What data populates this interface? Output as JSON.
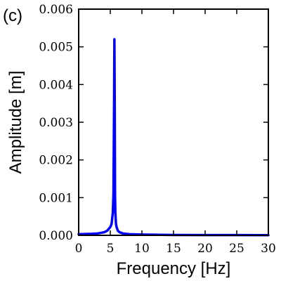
{
  "panel_label": "(c)",
  "chart_data": {
    "type": "line",
    "title": "",
    "xlabel": "Frequency [Hz]",
    "ylabel": "Amplitude [m]",
    "xlim": [
      0,
      30
    ],
    "ylim": [
      0,
      0.006
    ],
    "xticks": [
      0,
      5,
      10,
      15,
      20,
      25,
      30
    ],
    "xtick_labels": [
      "0",
      "5",
      "10",
      "15",
      "20",
      "25",
      "30"
    ],
    "yticks": [
      0,
      0.001,
      0.002,
      0.003,
      0.004,
      0.005,
      0.006
    ],
    "ytick_labels": [
      "0.000",
      "0.001",
      "0.002",
      "0.003",
      "0.004",
      "0.005",
      "0.006"
    ],
    "grid": false,
    "series": [
      {
        "color": "#0000ff",
        "x": [
          0,
          1,
          2,
          3,
          4,
          4.5,
          5,
          5.2,
          5.4,
          5.5,
          5.6,
          5.65,
          5.7,
          5.75,
          5.8,
          5.9,
          6.0,
          6.2,
          6.5,
          7,
          8,
          10,
          15,
          20,
          25,
          30
        ],
        "y": [
          3e-05,
          3.5e-05,
          4e-05,
          5e-05,
          8e-05,
          0.00012,
          0.00022,
          0.0003,
          0.0006,
          0.0011,
          0.0035,
          0.0052,
          0.0035,
          0.0011,
          0.0006,
          0.0003,
          0.00022,
          0.00012,
          8e-05,
          5e-05,
          3e-05,
          2e-05,
          1e-05,
          8e-06,
          6e-06,
          5e-06
        ]
      }
    ]
  }
}
